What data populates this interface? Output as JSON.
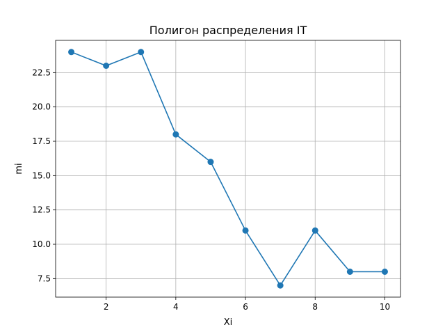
{
  "chart_data": {
    "type": "line",
    "title": "Полигон распределения IT",
    "xlabel": "Xi",
    "ylabel": "mi",
    "x": [
      1,
      2,
      3,
      4,
      5,
      6,
      7,
      8,
      9,
      10
    ],
    "series": [
      {
        "values": [
          24,
          23,
          24,
          18,
          16,
          11,
          7,
          11,
          8,
          8
        ]
      }
    ],
    "xlim": [
      0.55,
      10.45
    ],
    "ylim": [
      6.15,
      24.85
    ],
    "xticks": [
      2,
      4,
      6,
      8,
      10
    ],
    "xtick_labels": [
      "2",
      "4",
      "6",
      "8",
      "10"
    ],
    "yticks": [
      7.5,
      10.0,
      12.5,
      15.0,
      17.5,
      20.0,
      22.5
    ],
    "ytick_labels": [
      "7.5",
      "10.0",
      "12.5",
      "15.0",
      "17.5",
      "20.0",
      "22.5"
    ],
    "grid": true,
    "marker": "circle",
    "color": "#1f77b4"
  }
}
